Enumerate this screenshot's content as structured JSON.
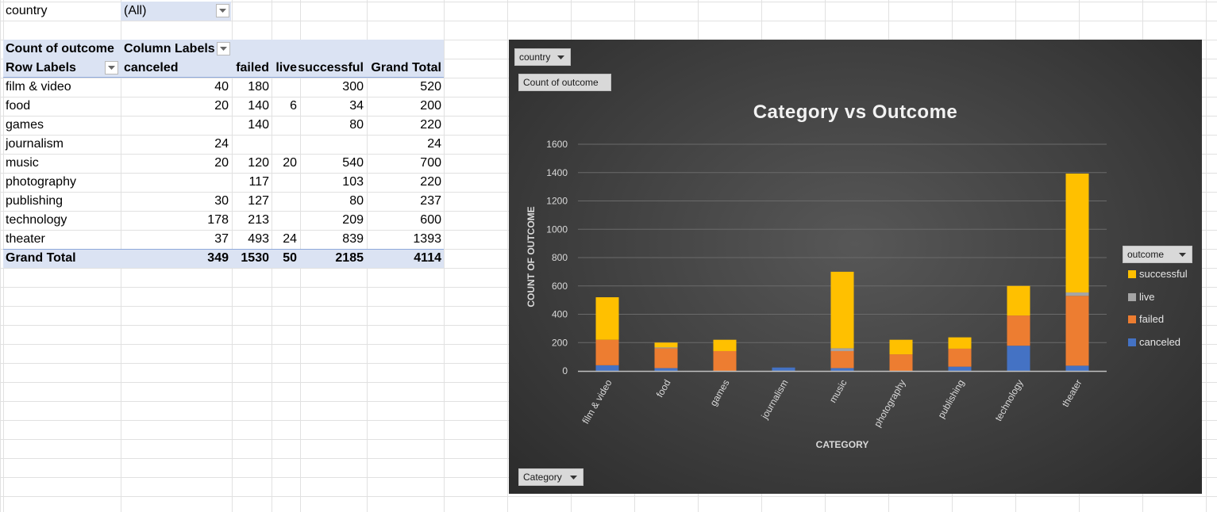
{
  "filter": {
    "field": "country",
    "value": "(All)"
  },
  "pivot": {
    "values_header": "Count of outcome",
    "column_labels": "Column Labels",
    "row_labels": "Row Labels",
    "columns": [
      "canceled",
      "failed",
      "live",
      "successful",
      "Grand Total"
    ],
    "rows": [
      {
        "label": "film & video",
        "canceled": "40",
        "failed": "180",
        "live": "",
        "successful": "300",
        "total": "520"
      },
      {
        "label": "food",
        "canceled": "20",
        "failed": "140",
        "live": "6",
        "successful": "34",
        "total": "200"
      },
      {
        "label": "games",
        "canceled": "",
        "failed": "140",
        "live": "",
        "successful": "80",
        "total": "220"
      },
      {
        "label": "journalism",
        "canceled": "24",
        "failed": "",
        "live": "",
        "successful": "",
        "total": "24"
      },
      {
        "label": "music",
        "canceled": "20",
        "failed": "120",
        "live": "20",
        "successful": "540",
        "total": "700"
      },
      {
        "label": "photography",
        "canceled": "",
        "failed": "117",
        "live": "",
        "successful": "103",
        "total": "220"
      },
      {
        "label": "publishing",
        "canceled": "30",
        "failed": "127",
        "live": "",
        "successful": "80",
        "total": "237"
      },
      {
        "label": "technology",
        "canceled": "178",
        "failed": "213",
        "live": "",
        "successful": "209",
        "total": "600"
      },
      {
        "label": "theater",
        "canceled": "37",
        "failed": "493",
        "live": "24",
        "successful": "839",
        "total": "1393"
      }
    ],
    "grand_total": {
      "label": "Grand Total",
      "canceled": "349",
      "failed": "1530",
      "live": "50",
      "successful": "2185",
      "total": "4114"
    }
  },
  "chart_buttons": {
    "filter": "country",
    "values": "Count  of outcome",
    "axis": "Category",
    "legend": "outcome"
  },
  "chart_data": {
    "type": "bar",
    "stacked": true,
    "title": "Category vs Outcome",
    "xlabel": "CATEGORY",
    "ylabel": "COUNT OF OUTCOME",
    "ylim": [
      0,
      1600
    ],
    "yticks": [
      0,
      200,
      400,
      600,
      800,
      1000,
      1200,
      1400,
      1600
    ],
    "grid": true,
    "legend_position": "right",
    "categories": [
      "film & video",
      "food",
      "games",
      "journalism",
      "music",
      "photography",
      "publishing",
      "technology",
      "theater"
    ],
    "series": [
      {
        "name": "canceled",
        "color": "#4472c4",
        "values": [
          40,
          20,
          0,
          24,
          20,
          0,
          30,
          178,
          37
        ]
      },
      {
        "name": "failed",
        "color": "#ed7d31",
        "values": [
          180,
          140,
          140,
          0,
          120,
          117,
          127,
          213,
          493
        ]
      },
      {
        "name": "live",
        "color": "#a5a5a5",
        "values": [
          0,
          6,
          0,
          0,
          20,
          0,
          0,
          0,
          24
        ]
      },
      {
        "name": "successful",
        "color": "#ffc000",
        "values": [
          300,
          34,
          80,
          0,
          540,
          103,
          80,
          209,
          839
        ]
      }
    ],
    "legend_order": [
      "successful",
      "live",
      "failed",
      "canceled"
    ]
  }
}
